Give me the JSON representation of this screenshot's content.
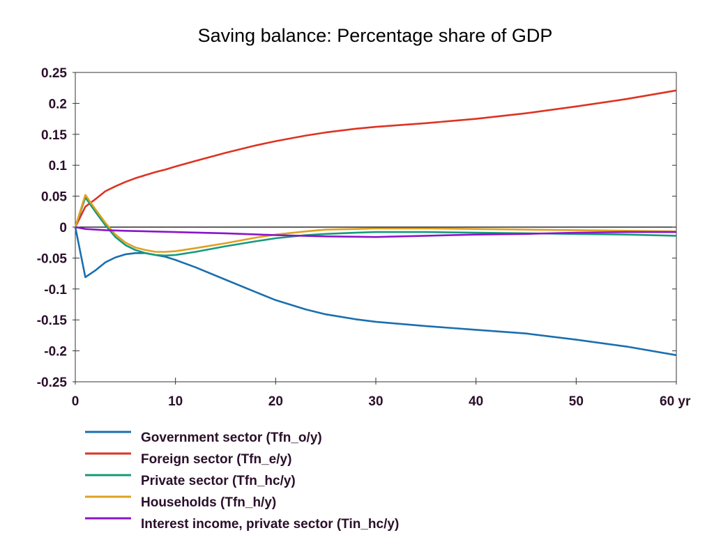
{
  "chart_data": {
    "type": "line",
    "title": "Saving balance: Percentage share of GDP",
    "xlabel": "",
    "ylabel": "",
    "xlim": [
      0,
      60
    ],
    "ylim": [
      -0.25,
      0.25
    ],
    "x_ticks": [
      "0",
      "10",
      "20",
      "30",
      "40",
      "50",
      "60 yr"
    ],
    "x_tick_values": [
      0,
      10,
      20,
      30,
      40,
      50,
      60
    ],
    "y_ticks": [
      "0.25",
      "0.2",
      "0.15",
      "0.1",
      "0.05",
      "0",
      "-0.05",
      "-0.1",
      "-0.15",
      "-0.2",
      "-0.25"
    ],
    "y_tick_values": [
      0.25,
      0.2,
      0.15,
      0.1,
      0.05,
      0,
      -0.05,
      -0.1,
      -0.15,
      -0.2,
      -0.25
    ],
    "grid": false,
    "legend_position": "below",
    "series": [
      {
        "name": "Government sector (Tfn_o/y)",
        "color": "#1a6fae",
        "points": [
          [
            0,
            0
          ],
          [
            1,
            -0.081
          ],
          [
            2,
            -0.07
          ],
          [
            3,
            -0.057
          ],
          [
            4,
            -0.049
          ],
          [
            5,
            -0.044
          ],
          [
            6,
            -0.042
          ],
          [
            7,
            -0.042
          ],
          [
            8,
            -0.045
          ],
          [
            9,
            -0.048
          ],
          [
            10,
            -0.053
          ],
          [
            12,
            -0.065
          ],
          [
            15,
            -0.085
          ],
          [
            18,
            -0.105
          ],
          [
            20,
            -0.118
          ],
          [
            23,
            -0.133
          ],
          [
            25,
            -0.141
          ],
          [
            28,
            -0.149
          ],
          [
            30,
            -0.153
          ],
          [
            35,
            -0.16
          ],
          [
            40,
            -0.166
          ],
          [
            45,
            -0.172
          ],
          [
            50,
            -0.182
          ],
          [
            55,
            -0.193
          ],
          [
            60,
            -0.207
          ]
        ]
      },
      {
        "name": "Foreign sector (Tfn_e/y)",
        "color": "#dd3322",
        "points": [
          [
            0,
            0
          ],
          [
            1,
            0.033
          ],
          [
            2,
            0.045
          ],
          [
            3,
            0.058
          ],
          [
            4,
            0.066
          ],
          [
            5,
            0.073
          ],
          [
            6,
            0.079
          ],
          [
            7,
            0.084
          ],
          [
            8,
            0.089
          ],
          [
            9,
            0.093
          ],
          [
            10,
            0.098
          ],
          [
            12,
            0.107
          ],
          [
            15,
            0.12
          ],
          [
            18,
            0.132
          ],
          [
            20,
            0.139
          ],
          [
            23,
            0.148
          ],
          [
            25,
            0.153
          ],
          [
            28,
            0.159
          ],
          [
            30,
            0.162
          ],
          [
            35,
            0.168
          ],
          [
            40,
            0.175
          ],
          [
            45,
            0.184
          ],
          [
            50,
            0.195
          ],
          [
            55,
            0.207
          ],
          [
            60,
            0.221
          ]
        ]
      },
      {
        "name": "Private sector (Tfn_hc/y)",
        "color": "#159a7a",
        "points": [
          [
            0,
            0
          ],
          [
            1,
            0.048
          ],
          [
            2,
            0.025
          ],
          [
            3,
            0.003
          ],
          [
            4,
            -0.016
          ],
          [
            5,
            -0.029
          ],
          [
            6,
            -0.037
          ],
          [
            7,
            -0.042
          ],
          [
            8,
            -0.045
          ],
          [
            9,
            -0.046
          ],
          [
            10,
            -0.045
          ],
          [
            12,
            -0.04
          ],
          [
            15,
            -0.031
          ],
          [
            18,
            -0.023
          ],
          [
            20,
            -0.018
          ],
          [
            23,
            -0.013
          ],
          [
            25,
            -0.011
          ],
          [
            28,
            -0.009
          ],
          [
            30,
            -0.008
          ],
          [
            35,
            -0.008
          ],
          [
            40,
            -0.009
          ],
          [
            45,
            -0.01
          ],
          [
            50,
            -0.011
          ],
          [
            55,
            -0.012
          ],
          [
            60,
            -0.014
          ]
        ]
      },
      {
        "name": "Households (Tfn_h/y)",
        "color": "#e0a020",
        "points": [
          [
            0,
            0
          ],
          [
            1,
            0.052
          ],
          [
            2,
            0.029
          ],
          [
            3,
            0.007
          ],
          [
            4,
            -0.012
          ],
          [
            5,
            -0.025
          ],
          [
            6,
            -0.033
          ],
          [
            7,
            -0.037
          ],
          [
            8,
            -0.04
          ],
          [
            9,
            -0.04
          ],
          [
            10,
            -0.039
          ],
          [
            12,
            -0.034
          ],
          [
            15,
            -0.026
          ],
          [
            18,
            -0.017
          ],
          [
            20,
            -0.012
          ],
          [
            23,
            -0.007
          ],
          [
            25,
            -0.004
          ],
          [
            28,
            -0.003
          ],
          [
            30,
            -0.002
          ],
          [
            35,
            -0.002
          ],
          [
            40,
            -0.003
          ],
          [
            45,
            -0.004
          ],
          [
            50,
            -0.005
          ],
          [
            55,
            -0.006
          ],
          [
            60,
            -0.007
          ]
        ]
      },
      {
        "name": "Interest income, private sector (Tin_hc/y)",
        "color": "#8a14c8",
        "points": [
          [
            0,
            0
          ],
          [
            1,
            -0.003
          ],
          [
            3,
            -0.005
          ],
          [
            5,
            -0.006
          ],
          [
            10,
            -0.008
          ],
          [
            15,
            -0.01
          ],
          [
            20,
            -0.013
          ],
          [
            25,
            -0.015
          ],
          [
            30,
            -0.016
          ],
          [
            35,
            -0.014
          ],
          [
            40,
            -0.012
          ],
          [
            45,
            -0.011
          ],
          [
            50,
            -0.009
          ],
          [
            55,
            -0.008
          ],
          [
            60,
            -0.008
          ]
        ]
      }
    ]
  }
}
